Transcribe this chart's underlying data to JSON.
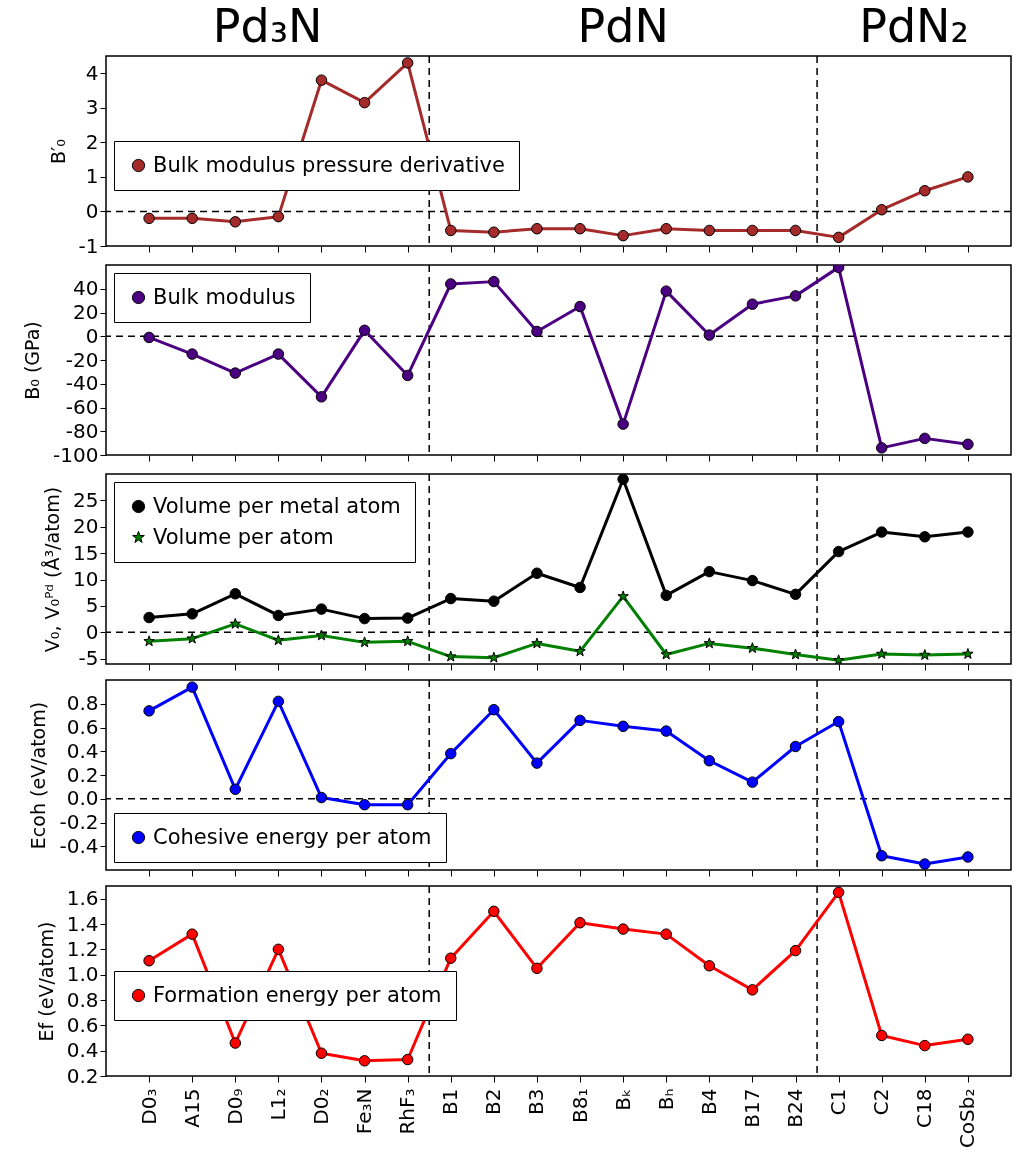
{
  "chart_data": [
    {
      "type": "line",
      "ylabel": "B′₀",
      "categories": [
        "D0₃",
        "A15",
        "D0₉",
        "L1₂",
        "D0₂",
        "Fe₃N",
        "RhF₃",
        "B1",
        "B2",
        "B3",
        "B8₁",
        "Bₖ",
        "Bₕ",
        "B4",
        "B17",
        "B24",
        "C1",
        "C2",
        "C18",
        "CoSb₂"
      ],
      "ylim": [
        -1,
        4.5
      ],
      "yticks": [
        -1,
        0,
        1,
        2,
        3,
        4
      ],
      "tick_labels": "y",
      "marker": "circle",
      "legend": "left",
      "series": [
        {
          "name": "Bulk modulus pressure derivative",
          "color": "#a52a2a",
          "values": [
            -0.2,
            -0.2,
            -0.3,
            -0.15,
            3.8,
            3.15,
            4.3,
            -0.55,
            -0.6,
            -0.5,
            -0.5,
            -0.7,
            -0.5,
            -0.55,
            -0.55,
            -0.55,
            -0.75,
            0.05,
            0.6,
            1.0
          ]
        }
      ],
      "ref_lines": [
        {
          "axis": "y",
          "value": 0,
          "color": "#000000",
          "line_style": "dashed"
        }
      ],
      "annotations": [
        "Pd₃N",
        "PdN",
        "PdN₂"
      ]
    },
    {
      "type": "line",
      "ylabel": "B₀ (GPa)",
      "categories": [
        "D0₃",
        "A15",
        "D0₉",
        "L1₂",
        "D0₂",
        "Fe₃N",
        "RhF₃",
        "B1",
        "B2",
        "B3",
        "B8₁",
        "Bₖ",
        "Bₕ",
        "B4",
        "B17",
        "B24",
        "C1",
        "C2",
        "C18",
        "CoSb₂"
      ],
      "ylim": [
        -100,
        60
      ],
      "yticks": [
        -100,
        -80,
        -60,
        -40,
        -20,
        0,
        20,
        40
      ],
      "tick_labels": "y",
      "marker": "circle",
      "legend": "top left",
      "series": [
        {
          "name": "Bulk modulus",
          "color": "#4b0082",
          "values": [
            -1,
            -15,
            -31,
            -15,
            -51,
            5,
            -33,
            44,
            46,
            4,
            25,
            -74,
            38,
            1,
            27,
            34,
            58,
            -94,
            -86,
            -91
          ]
        }
      ],
      "ref_lines": [
        {
          "axis": "y",
          "value": 0,
          "color": "#000000",
          "line_style": "dashed"
        }
      ]
    },
    {
      "type": "line",
      "ylabel": "V₀, V₀ᴾᵈ (Å³/atom)",
      "categories": [
        "D0₃",
        "A15",
        "D0₉",
        "L1₂",
        "D0₂",
        "Fe₃N",
        "RhF₃",
        "B1",
        "B2",
        "B3",
        "B8₁",
        "Bₖ",
        "Bₕ",
        "B4",
        "B17",
        "B24",
        "C1",
        "C2",
        "C18",
        "CoSb₂"
      ],
      "ylim": [
        -6,
        30
      ],
      "yticks": [
        -5,
        0,
        5,
        10,
        15,
        20,
        25
      ],
      "tick_labels": "y",
      "marker": "circle",
      "legend": "top left",
      "series": [
        {
          "name": "Volume per metal atom",
          "color": "#000000",
          "values": [
            2.8,
            3.5,
            7.3,
            3.2,
            4.4,
            2.6,
            2.7,
            6.4,
            5.9,
            11.2,
            8.5,
            29,
            7,
            11.5,
            9.8,
            7.2,
            15.3,
            19,
            18.1,
            19
          ]
        },
        {
          "name": "Volume per atom",
          "color": "#008000",
          "marker": "star",
          "values": [
            -1.7,
            -1.2,
            1.6,
            -1.5,
            -0.6,
            -1.9,
            -1.7,
            -4.6,
            -4.8,
            -2.1,
            -3.6,
            6.8,
            -4.2,
            -2.1,
            -3,
            -4.2,
            -5.3,
            -4.1,
            -4.3,
            -4.1
          ]
        }
      ],
      "ref_lines": [
        {
          "axis": "y",
          "value": 0,
          "color": "#000000",
          "line_style": "dashed"
        }
      ]
    },
    {
      "type": "line",
      "ylabel": "Ecoh (eV/atom)",
      "categories": [
        "D0₃",
        "A15",
        "D0₉",
        "L1₂",
        "D0₂",
        "Fe₃N",
        "RhF₃",
        "B1",
        "B2",
        "B3",
        "B8₁",
        "Bₖ",
        "Bₕ",
        "B4",
        "B17",
        "B24",
        "C1",
        "C2",
        "C18",
        "CoSb₂"
      ],
      "ylim": [
        -0.6,
        1.0
      ],
      "yticks": [
        -0.4,
        -0.2,
        {
          "value": 0,
          "label": "0.0"
        },
        0.2,
        0.4,
        0.6,
        0.8
      ],
      "tick_labels": "y",
      "marker": "circle",
      "legend": "bottom left",
      "series": [
        {
          "name": "Cohesive energy per atom",
          "color": "#0000ff",
          "values": [
            0.74,
            0.94,
            0.08,
            0.82,
            0.01,
            -0.05,
            -0.05,
            0.38,
            0.75,
            0.3,
            0.66,
            0.61,
            0.57,
            0.32,
            0.14,
            0.44,
            0.65,
            -0.48,
            -0.55,
            -0.49
          ]
        }
      ],
      "ref_lines": [
        {
          "axis": "y",
          "value": 0,
          "color": "#000000",
          "line_style": "dashed"
        }
      ]
    },
    {
      "type": "line",
      "ylabel": "Ef (eV/atom)",
      "categories": [
        "D0₃",
        "A15",
        "D0₉",
        "L1₂",
        "D0₂",
        "Fe₃N",
        "RhF₃",
        "B1",
        "B2",
        "B3",
        "B8₁",
        "Bₖ",
        "Bₕ",
        "B4",
        "B17",
        "B24",
        "C1",
        "C2",
        "C18",
        "CoSb₂"
      ],
      "ylim": [
        0.2,
        1.7
      ],
      "yticks": [
        0.2,
        0.4,
        0.6,
        0.8,
        {
          "value": 1,
          "label": "1.0"
        },
        1.2,
        1.4,
        1.6
      ],
      "marker": "circle",
      "legend": "left",
      "series": [
        {
          "name": "Formation energy per atom",
          "color": "#ff0000",
          "values": [
            1.11,
            1.32,
            0.46,
            1.2,
            0.38,
            0.32,
            0.33,
            1.13,
            1.5,
            1.05,
            1.41,
            1.36,
            1.32,
            1.07,
            0.88,
            1.19,
            1.65,
            0.52,
            0.44,
            0.49
          ]
        }
      ]
    }
  ]
}
